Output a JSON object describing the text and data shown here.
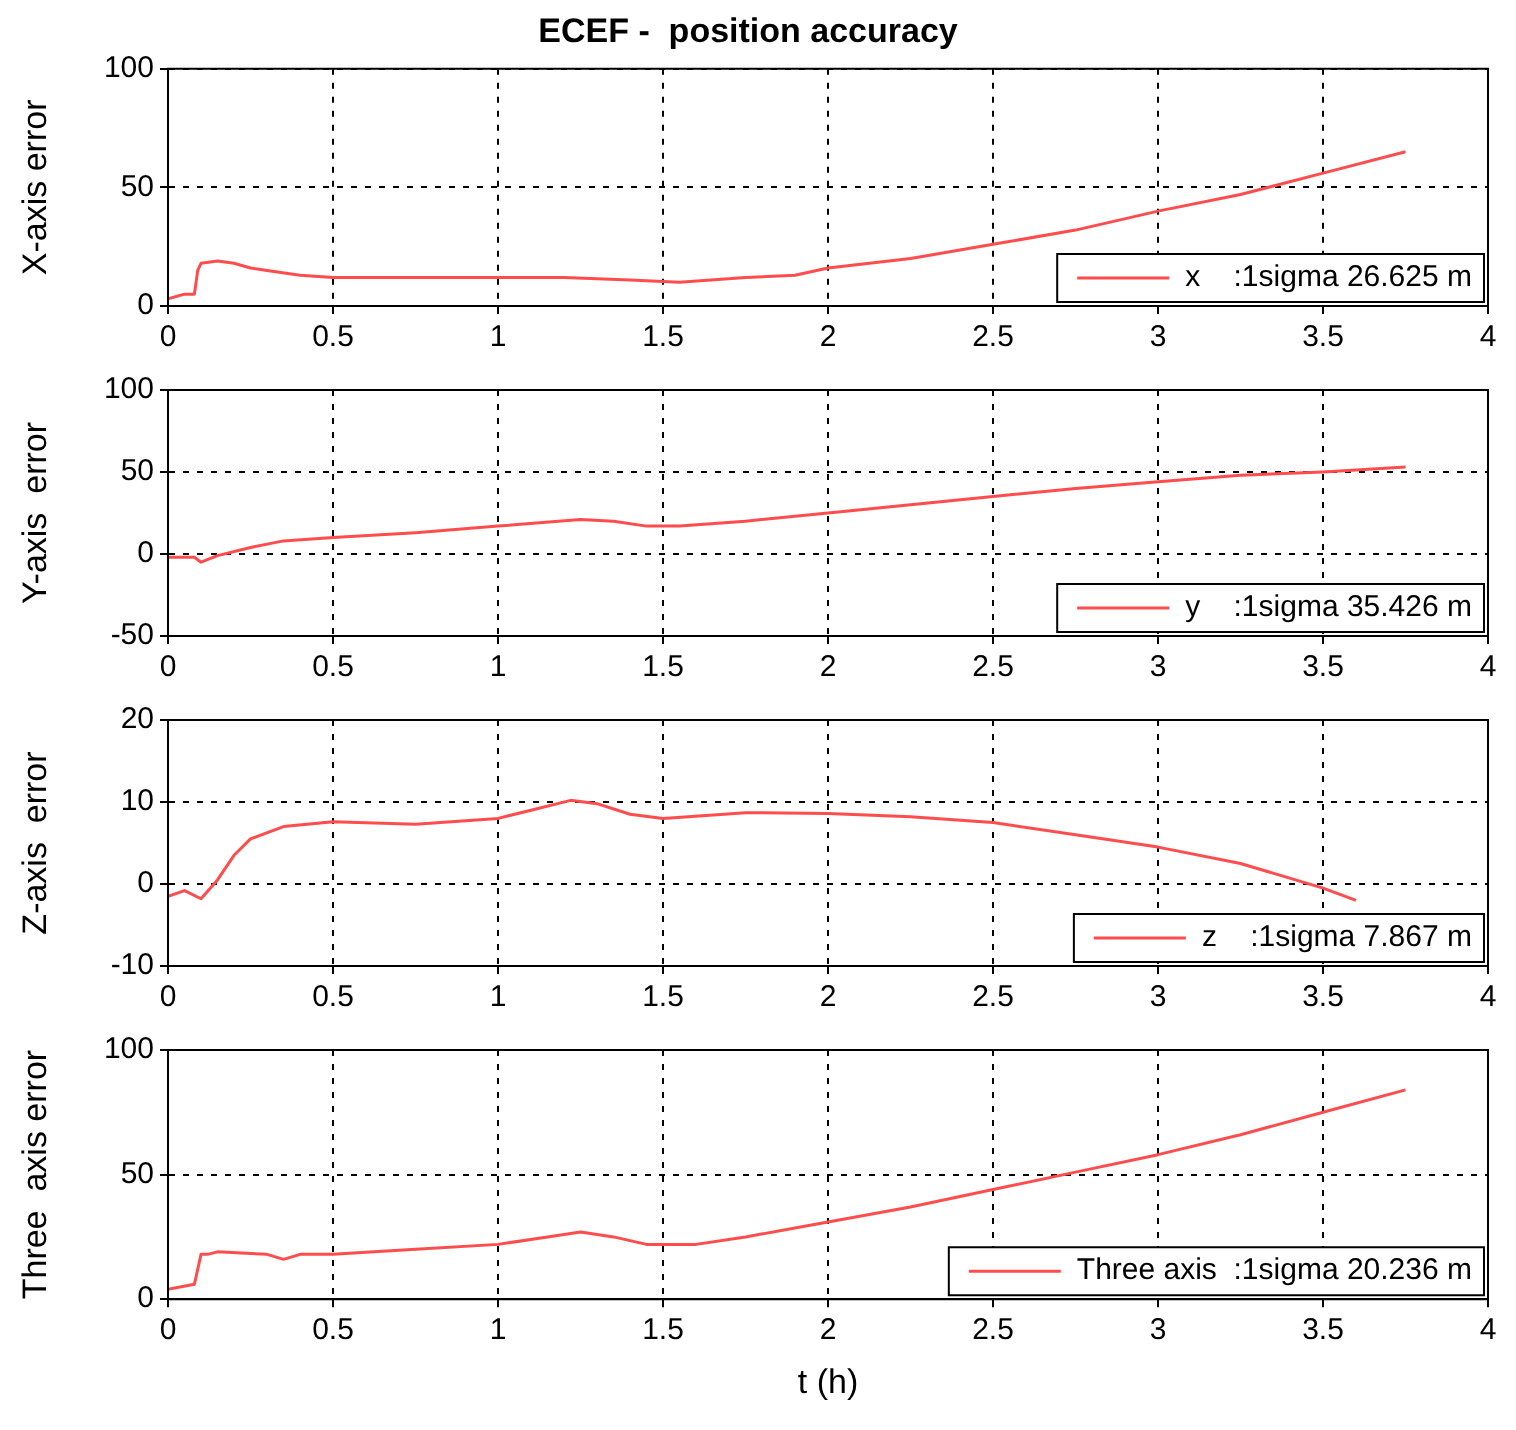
{
  "chart_data": [
    {
      "type": "line",
      "title": "ECEF -  position accuracy",
      "ylabel": "X-axis error",
      "xlim": [
        0,
        4
      ],
      "xticks": [
        0,
        0.5,
        1,
        1.5,
        2,
        2.5,
        3,
        3.5,
        4
      ],
      "ylim": [
        0,
        100
      ],
      "yticks": [
        0,
        50,
        100
      ],
      "grid": true,
      "legend": "bottom right",
      "marker": "none",
      "line_style": "solid",
      "series": [
        {
          "name": "x    :1sigma 26.625 m",
          "color": "#ff4d4d",
          "x": [
            0,
            0.05,
            0.08,
            0.09,
            0.1,
            0.15,
            0.2,
            0.25,
            0.3,
            0.4,
            0.5,
            0.75,
            1,
            1.2,
            1.4,
            1.55,
            1.75,
            1.9,
            2,
            2.25,
            2.5,
            2.75,
            3,
            3.25,
            3.5,
            3.75
          ],
          "values": [
            3,
            5,
            5,
            15,
            18,
            19,
            18,
            16,
            15,
            13,
            12,
            12,
            12,
            12,
            11,
            10,
            12,
            13,
            16,
            20,
            26,
            32,
            40,
            47,
            56,
            65
          ]
        }
      ]
    },
    {
      "type": "line",
      "ylabel": "Y-axis  error",
      "xlim": [
        0,
        4
      ],
      "xticks": [
        0,
        0.5,
        1,
        1.5,
        2,
        2.5,
        3,
        3.5,
        4
      ],
      "ylim": [
        -50,
        100
      ],
      "yticks": [
        -50,
        0,
        50,
        100
      ],
      "grid": true,
      "legend": "bottom right",
      "marker": "none",
      "line_style": "solid",
      "series": [
        {
          "name": "y    :1sigma 35.426 m",
          "color": "#ff4d4d",
          "x": [
            0,
            0.08,
            0.1,
            0.15,
            0.25,
            0.35,
            0.5,
            0.75,
            1,
            1.25,
            1.35,
            1.45,
            1.55,
            1.75,
            2,
            2.25,
            2.5,
            2.75,
            3,
            3.25,
            3.5,
            3.75
          ],
          "values": [
            -2,
            -2,
            -5,
            -1,
            4,
            8,
            10,
            13,
            17,
            21,
            20,
            17,
            17,
            20,
            25,
            30,
            35,
            40,
            44,
            48,
            50,
            53
          ]
        }
      ]
    },
    {
      "type": "line",
      "ylabel": "Z-axis  error",
      "xlim": [
        0,
        4
      ],
      "xticks": [
        0,
        0.5,
        1,
        1.5,
        2,
        2.5,
        3,
        3.5,
        4
      ],
      "ylim": [
        -10,
        20
      ],
      "yticks": [
        -10,
        0,
        10,
        20
      ],
      "grid": true,
      "legend": "bottom right",
      "marker": "none",
      "line_style": "solid",
      "series": [
        {
          "name": "z    :1sigma 7.867 m",
          "color": "#ff4d4d",
          "x": [
            0,
            0.05,
            0.1,
            0.15,
            0.2,
            0.25,
            0.35,
            0.5,
            0.75,
            1,
            1.1,
            1.22,
            1.3,
            1.4,
            1.5,
            1.75,
            2,
            2.25,
            2.5,
            2.75,
            3,
            3.25,
            3.5,
            3.6
          ],
          "values": [
            -1.5,
            -0.8,
            -1.8,
            0.5,
            3.5,
            5.5,
            7,
            7.6,
            7.3,
            8,
            9,
            10.2,
            9.8,
            8.5,
            8,
            8.7,
            8.6,
            8.2,
            7.5,
            6,
            4.5,
            2.5,
            -0.5,
            -2
          ]
        }
      ]
    },
    {
      "type": "line",
      "xlabel": "t (h)",
      "ylabel": "Three  axis error",
      "xlim": [
        0,
        4
      ],
      "xticks": [
        0,
        0.5,
        1,
        1.5,
        2,
        2.5,
        3,
        3.5,
        4
      ],
      "ylim": [
        0,
        100
      ],
      "yticks": [
        0,
        50,
        100
      ],
      "grid": true,
      "legend": "bottom right",
      "marker": "none",
      "line_style": "solid",
      "series": [
        {
          "name": "Three axis  :1sigma 20.236 m",
          "color": "#ff4d4d",
          "x": [
            0,
            0.08,
            0.1,
            0.12,
            0.15,
            0.3,
            0.35,
            0.4,
            0.5,
            0.75,
            1,
            1.15,
            1.25,
            1.35,
            1.45,
            1.6,
            1.75,
            2,
            2.25,
            2.5,
            2.75,
            3,
            3.25,
            3.5,
            3.75
          ],
          "values": [
            4,
            6,
            18,
            18,
            19,
            18,
            16,
            18,
            18,
            20,
            22,
            25,
            27,
            25,
            22,
            22,
            25,
            31,
            37,
            44,
            51,
            58,
            66,
            75,
            84
          ]
        }
      ]
    }
  ]
}
